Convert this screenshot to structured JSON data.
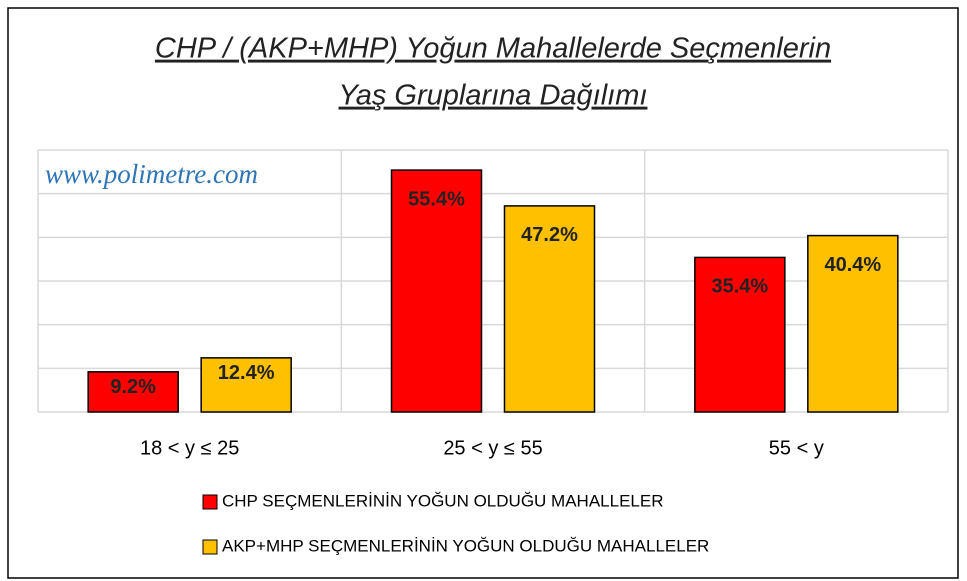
{
  "chart_data": {
    "type": "bar",
    "title": [
      "CHP / (AKP+MHP) Yoğun Mahallelerde Seçmenlerin",
      "Yaş Gruplarına Dağılımı"
    ],
    "watermark": "www.polimetre.com",
    "categories": [
      "18 < y ≤ 25",
      "25 < y ≤ 55",
      "55 < y"
    ],
    "series": [
      {
        "name": "CHP SEÇMENLERİNİN YOĞUN OLDUĞU MAHALLELER",
        "color": "#ff0000",
        "values": [
          9.2,
          55.4,
          35.4
        ],
        "value_labels": [
          "9.2%",
          "55.4%",
          "35.4%"
        ]
      },
      {
        "name": "AKP+MHP SEÇMENLERİNİN YOĞUN OLDUĞU MAHALLELER",
        "color": "#ffc000",
        "values": [
          12.4,
          47.2,
          40.4
        ],
        "value_labels": [
          "12.4%",
          "47.2%",
          "40.4%"
        ]
      }
    ],
    "ylim": [
      0,
      60
    ],
    "yticks": [
      0,
      10,
      20,
      30,
      40,
      50,
      60
    ],
    "grid": true,
    "legend": "bottom"
  }
}
